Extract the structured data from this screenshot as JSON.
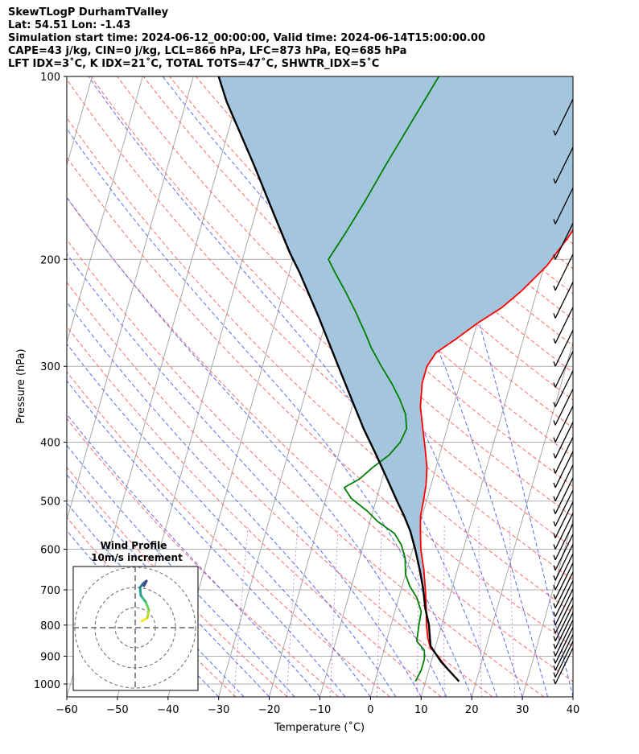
{
  "titles": {
    "line1": "SkewTLogP DurhamTValley",
    "line2": "Lat: 54.51   Lon: -1.43",
    "line3": "Simulation start time: 2024-06-12_00:00:00, Valid time: 2024-06-14T15:00:00.00",
    "line4": "CAPE=43 j/kg, CIN=0 j/kg, LCL=866 hPa, LFC=873 hPa, EQ=685 hPa",
    "line5": "LFT IDX=3˚C, K IDX=21˚C, TOTAL TOTS=47˚C, SHWTR_IDX=5˚C"
  },
  "chart_data": {
    "type": "line",
    "xlabel": "Temperature (˚C)",
    "ylabel": "Pressure (hPa)",
    "xlim": [
      -60,
      40
    ],
    "ylim": [
      1050,
      100
    ],
    "y_scale": "log",
    "grid": true,
    "x_ticks": [
      "−60",
      "−50",
      "−40",
      "−30",
      "−20",
      "−10",
      "0",
      "10",
      "20",
      "30",
      "40"
    ],
    "y_ticks": [
      "1000",
      "900",
      "800",
      "700",
      "600",
      "500",
      "400",
      "300",
      "200",
      "100"
    ],
    "series": [
      {
        "role": "temperature",
        "color": "#ff0000",
        "points": [
          [
            16.6,
            990
          ],
          [
            14,
            950
          ],
          [
            11,
            900
          ],
          [
            9,
            870
          ],
          [
            8,
            840
          ],
          [
            7,
            800
          ],
          [
            6,
            750
          ],
          [
            4.8,
            700
          ],
          [
            3.4,
            650
          ],
          [
            1.6,
            600
          ],
          [
            0.5,
            560
          ],
          [
            -0.3,
            530
          ],
          [
            -0.6,
            500
          ],
          [
            -1,
            470
          ],
          [
            -1.8,
            440
          ],
          [
            -3.2,
            410
          ],
          [
            -4.8,
            380
          ],
          [
            -6.5,
            350
          ],
          [
            -7.5,
            320
          ],
          [
            -7.5,
            300
          ],
          [
            -6.5,
            285
          ],
          [
            -3.2,
            270
          ],
          [
            0,
            255
          ],
          [
            4,
            240
          ],
          [
            7,
            225
          ],
          [
            10.5,
            205
          ],
          [
            13,
            185
          ],
          [
            15,
            168
          ],
          [
            18,
            148
          ],
          [
            20.5,
            130
          ],
          [
            22,
            118
          ],
          [
            23,
            108
          ],
          [
            25,
            100
          ]
        ]
      },
      {
        "role": "dewpoint",
        "color": "#008000",
        "points": [
          [
            8,
            990
          ],
          [
            8.5,
            950
          ],
          [
            8.5,
            910
          ],
          [
            8,
            880
          ],
          [
            6,
            850
          ],
          [
            5.5,
            800
          ],
          [
            5.2,
            760
          ],
          [
            3.5,
            720
          ],
          [
            1.5,
            690
          ],
          [
            0,
            660
          ],
          [
            -1,
            620
          ],
          [
            -2.5,
            590
          ],
          [
            -4.5,
            565
          ],
          [
            -8.5,
            540
          ],
          [
            -11,
            520
          ],
          [
            -15,
            495
          ],
          [
            -17,
            475
          ],
          [
            -14.5,
            460
          ],
          [
            -12.5,
            440
          ],
          [
            -10,
            420
          ],
          [
            -8.5,
            400
          ],
          [
            -8,
            380
          ],
          [
            -9,
            360
          ],
          [
            -11,
            340
          ],
          [
            -13.5,
            320
          ],
          [
            -16.5,
            300
          ],
          [
            -19.5,
            280
          ],
          [
            -21.5,
            265
          ],
          [
            -24.5,
            245
          ],
          [
            -28,
            225
          ],
          [
            -31,
            210
          ],
          [
            -33,
            200
          ],
          [
            -31,
            180
          ],
          [
            -29,
            160
          ],
          [
            -27,
            140
          ],
          [
            -24.5,
            120
          ],
          [
            -21.5,
            100
          ]
        ]
      },
      {
        "role": "parcel",
        "color": "#000000",
        "points": [
          [
            16.6,
            990
          ],
          [
            12,
            920
          ],
          [
            9,
            866
          ],
          [
            7.5,
            800
          ],
          [
            5.8,
            750
          ],
          [
            4.4,
            700
          ],
          [
            2.6,
            650
          ],
          [
            0.5,
            600
          ],
          [
            -1.5,
            560
          ],
          [
            -3.5,
            530
          ],
          [
            -5.8,
            500
          ],
          [
            -9,
            460
          ],
          [
            -12.5,
            420
          ],
          [
            -16.5,
            380
          ],
          [
            -20.5,
            340
          ],
          [
            -25,
            300
          ],
          [
            -31.5,
            250
          ],
          [
            -38,
            210
          ],
          [
            -41,
            195
          ],
          [
            -46,
            170
          ],
          [
            -53,
            140
          ],
          [
            -62,
            110
          ],
          [
            -65,
            100
          ]
        ]
      }
    ],
    "cape_fill_color": "#a3c6de",
    "wind_profile": {
      "title": "Wind Profile",
      "subtitle": "10m/s increment"
    }
  }
}
